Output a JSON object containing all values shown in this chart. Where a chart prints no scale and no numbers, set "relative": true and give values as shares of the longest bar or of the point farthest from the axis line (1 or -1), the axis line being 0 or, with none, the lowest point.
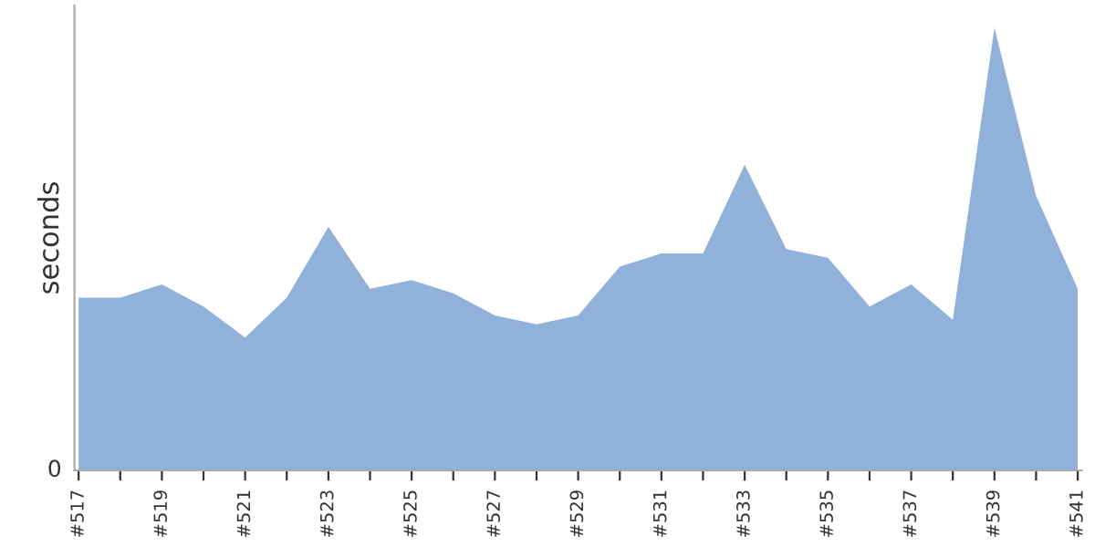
{
  "chart_data": {
    "type": "area",
    "ylabel": "seconds",
    "relative": true,
    "annotations": [
      "0"
    ],
    "color": "#8fb1da",
    "grid": false,
    "legend": false,
    "categories": [
      "#517",
      null,
      "#519",
      null,
      "#521",
      null,
      "#523",
      null,
      "#525",
      null,
      "#527",
      null,
      "#529",
      null,
      "#531",
      null,
      "#533",
      null,
      "#535",
      null,
      "#537",
      null,
      "#539",
      null,
      "#541"
    ],
    "values": [
      0.39,
      0.39,
      0.42,
      0.37,
      0.3,
      0.39,
      0.55,
      0.41,
      0.43,
      0.4,
      0.35,
      0.33,
      0.35,
      0.46,
      0.49,
      0.49,
      0.69,
      0.5,
      0.48,
      0.37,
      0.42,
      0.34,
      1,
      0.62,
      0.41
    ]
  }
}
